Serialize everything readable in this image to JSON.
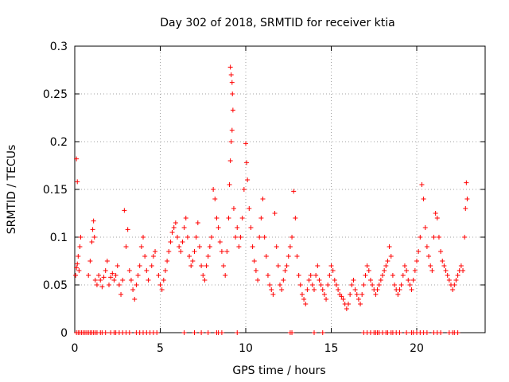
{
  "chart_data": {
    "type": "scatter",
    "title": "Day 302 of 2018, SRMTID for receiver ktia",
    "xlabel": "GPS time / hours",
    "ylabel": "SRMTID / TECUs",
    "xlim": [
      0,
      24
    ],
    "ylim": [
      0,
      0.3
    ],
    "xticks": [
      0,
      5,
      10,
      15,
      20
    ],
    "xtick_labels": [
      "0",
      "5",
      "10",
      "15",
      "20"
    ],
    "yticks": [
      0,
      0.05,
      0.1,
      0.15,
      0.2,
      0.25,
      0.3
    ],
    "ytick_labels": [
      "0",
      "0.05",
      "0.1",
      "0.15",
      "0.2",
      "0.25",
      "0.3"
    ],
    "grid": true,
    "marker": "+",
    "color": "#ff0000",
    "series": [
      {
        "name": "SRMTID",
        "points": [
          [
            0.05,
            0.06
          ],
          [
            0.1,
            0.068
          ],
          [
            0.15,
            0.072
          ],
          [
            0.2,
            0.08
          ],
          [
            0.25,
            0.065
          ],
          [
            0.1,
            0.182
          ],
          [
            0.15,
            0.158
          ],
          [
            0.3,
            0.09
          ],
          [
            0.35,
            0.1
          ],
          [
            0.8,
            0.06
          ],
          [
            0.9,
            0.075
          ],
          [
            1.0,
            0.095
          ],
          [
            1.05,
            0.108
          ],
          [
            1.1,
            0.117
          ],
          [
            1.15,
            0.1
          ],
          [
            1.2,
            0.055
          ],
          [
            1.3,
            0.05
          ],
          [
            1.4,
            0.06
          ],
          [
            1.5,
            0.055
          ],
          [
            1.6,
            0.048
          ],
          [
            1.7,
            0.058
          ],
          [
            1.8,
            0.065
          ],
          [
            1.9,
            0.075
          ],
          [
            2.0,
            0.05
          ],
          [
            2.1,
            0.058
          ],
          [
            2.2,
            0.062
          ],
          [
            2.3,
            0.055
          ],
          [
            2.4,
            0.06
          ],
          [
            2.5,
            0.07
          ],
          [
            2.6,
            0.05
          ],
          [
            2.7,
            0.04
          ],
          [
            2.8,
            0.055
          ],
          [
            2.9,
            0.128
          ],
          [
            3.0,
            0.09
          ],
          [
            3.1,
            0.108
          ],
          [
            3.2,
            0.065
          ],
          [
            3.3,
            0.055
          ],
          [
            3.4,
            0.045
          ],
          [
            3.5,
            0.035
          ],
          [
            3.6,
            0.05
          ],
          [
            3.7,
            0.06
          ],
          [
            3.8,
            0.07
          ],
          [
            3.9,
            0.09
          ],
          [
            4.0,
            0.1
          ],
          [
            4.1,
            0.08
          ],
          [
            4.2,
            0.065
          ],
          [
            4.3,
            0.055
          ],
          [
            4.5,
            0.07
          ],
          [
            4.6,
            0.08
          ],
          [
            4.7,
            0.085
          ],
          [
            4.9,
            0.06
          ],
          [
            5.0,
            0.05
          ],
          [
            5.1,
            0.045
          ],
          [
            5.2,
            0.055
          ],
          [
            5.3,
            0.065
          ],
          [
            5.4,
            0.075
          ],
          [
            5.5,
            0.085
          ],
          [
            5.6,
            0.095
          ],
          [
            5.7,
            0.105
          ],
          [
            5.8,
            0.11
          ],
          [
            5.9,
            0.115
          ],
          [
            6.0,
            0.1
          ],
          [
            6.1,
            0.09
          ],
          [
            6.2,
            0.085
          ],
          [
            6.3,
            0.095
          ],
          [
            6.4,
            0.11
          ],
          [
            6.5,
            0.12
          ],
          [
            6.6,
            0.1
          ],
          [
            6.7,
            0.08
          ],
          [
            6.8,
            0.07
          ],
          [
            6.9,
            0.075
          ],
          [
            7.0,
            0.085
          ],
          [
            7.1,
            0.1
          ],
          [
            7.2,
            0.115
          ],
          [
            7.3,
            0.09
          ],
          [
            7.4,
            0.07
          ],
          [
            7.5,
            0.06
          ],
          [
            7.6,
            0.055
          ],
          [
            7.7,
            0.07
          ],
          [
            7.8,
            0.08
          ],
          [
            7.9,
            0.09
          ],
          [
            8.0,
            0.1
          ],
          [
            8.1,
            0.15
          ],
          [
            8.2,
            0.14
          ],
          [
            8.3,
            0.12
          ],
          [
            8.4,
            0.11
          ],
          [
            8.5,
            0.095
          ],
          [
            8.6,
            0.085
          ],
          [
            8.7,
            0.07
          ],
          [
            8.8,
            0.06
          ],
          [
            8.9,
            0.085
          ],
          [
            9.0,
            0.12
          ],
          [
            9.05,
            0.155
          ],
          [
            9.1,
            0.18
          ],
          [
            9.15,
            0.2
          ],
          [
            9.2,
            0.212
          ],
          [
            9.25,
            0.233
          ],
          [
            9.1,
            0.278
          ],
          [
            9.15,
            0.27
          ],
          [
            9.2,
            0.262
          ],
          [
            9.22,
            0.25
          ],
          [
            9.3,
            0.13
          ],
          [
            9.4,
            0.1
          ],
          [
            9.5,
            0.11
          ],
          [
            9.6,
            0.09
          ],
          [
            9.7,
            0.1
          ],
          [
            9.8,
            0.12
          ],
          [
            9.9,
            0.15
          ],
          [
            10.0,
            0.198
          ],
          [
            10.05,
            0.178
          ],
          [
            10.1,
            0.16
          ],
          [
            10.2,
            0.13
          ],
          [
            10.3,
            0.11
          ],
          [
            10.4,
            0.09
          ],
          [
            10.5,
            0.075
          ],
          [
            10.6,
            0.065
          ],
          [
            10.7,
            0.055
          ],
          [
            10.8,
            0.1
          ],
          [
            10.9,
            0.12
          ],
          [
            11.0,
            0.14
          ],
          [
            11.1,
            0.1
          ],
          [
            11.2,
            0.08
          ],
          [
            11.3,
            0.06
          ],
          [
            11.4,
            0.05
          ],
          [
            11.5,
            0.045
          ],
          [
            11.6,
            0.04
          ],
          [
            11.7,
            0.125
          ],
          [
            11.8,
            0.09
          ],
          [
            11.9,
            0.07
          ],
          [
            12.0,
            0.05
          ],
          [
            12.1,
            0.045
          ],
          [
            12.2,
            0.055
          ],
          [
            12.3,
            0.065
          ],
          [
            12.4,
            0.07
          ],
          [
            12.5,
            0.08
          ],
          [
            12.6,
            0.09
          ],
          [
            12.7,
            0.1
          ],
          [
            12.8,
            0.148
          ],
          [
            12.9,
            0.12
          ],
          [
            13.0,
            0.08
          ],
          [
            13.1,
            0.06
          ],
          [
            13.2,
            0.05
          ],
          [
            13.3,
            0.04
          ],
          [
            13.4,
            0.035
          ],
          [
            13.5,
            0.03
          ],
          [
            13.6,
            0.045
          ],
          [
            13.7,
            0.055
          ],
          [
            13.8,
            0.06
          ],
          [
            13.9,
            0.05
          ],
          [
            14.0,
            0.045
          ],
          [
            14.1,
            0.06
          ],
          [
            14.2,
            0.07
          ],
          [
            14.3,
            0.055
          ],
          [
            14.4,
            0.05
          ],
          [
            14.5,
            0.045
          ],
          [
            14.6,
            0.04
          ],
          [
            14.7,
            0.035
          ],
          [
            14.8,
            0.05
          ],
          [
            14.9,
            0.06
          ],
          [
            15.0,
            0.07
          ],
          [
            15.1,
            0.065
          ],
          [
            15.2,
            0.055
          ],
          [
            15.3,
            0.05
          ],
          [
            15.4,
            0.045
          ],
          [
            15.5,
            0.04
          ],
          [
            15.6,
            0.038
          ],
          [
            15.7,
            0.035
          ],
          [
            15.8,
            0.03
          ],
          [
            15.9,
            0.025
          ],
          [
            16.0,
            0.03
          ],
          [
            16.1,
            0.04
          ],
          [
            16.2,
            0.05
          ],
          [
            16.3,
            0.055
          ],
          [
            16.4,
            0.045
          ],
          [
            16.5,
            0.04
          ],
          [
            16.6,
            0.035
          ],
          [
            16.7,
            0.03
          ],
          [
            16.8,
            0.04
          ],
          [
            16.9,
            0.05
          ],
          [
            17.0,
            0.06
          ],
          [
            17.1,
            0.07
          ],
          [
            17.2,
            0.065
          ],
          [
            17.3,
            0.055
          ],
          [
            17.4,
            0.05
          ],
          [
            17.5,
            0.045
          ],
          [
            17.6,
            0.04
          ],
          [
            17.7,
            0.045
          ],
          [
            17.8,
            0.05
          ],
          [
            17.9,
            0.055
          ],
          [
            18.0,
            0.06
          ],
          [
            18.1,
            0.065
          ],
          [
            18.2,
            0.07
          ],
          [
            18.3,
            0.075
          ],
          [
            18.4,
            0.09
          ],
          [
            18.5,
            0.08
          ],
          [
            18.6,
            0.06
          ],
          [
            18.7,
            0.05
          ],
          [
            18.8,
            0.045
          ],
          [
            18.9,
            0.04
          ],
          [
            19.0,
            0.045
          ],
          [
            19.1,
            0.05
          ],
          [
            19.2,
            0.06
          ],
          [
            19.3,
            0.07
          ],
          [
            19.4,
            0.065
          ],
          [
            19.5,
            0.055
          ],
          [
            19.6,
            0.05
          ],
          [
            19.7,
            0.045
          ],
          [
            19.8,
            0.055
          ],
          [
            19.9,
            0.065
          ],
          [
            20.0,
            0.075
          ],
          [
            20.1,
            0.085
          ],
          [
            20.2,
            0.1
          ],
          [
            20.3,
            0.155
          ],
          [
            20.4,
            0.14
          ],
          [
            20.5,
            0.11
          ],
          [
            20.6,
            0.09
          ],
          [
            20.7,
            0.08
          ],
          [
            20.8,
            0.07
          ],
          [
            20.9,
            0.065
          ],
          [
            21.0,
            0.1
          ],
          [
            21.1,
            0.125
          ],
          [
            21.2,
            0.12
          ],
          [
            21.3,
            0.1
          ],
          [
            21.4,
            0.085
          ],
          [
            21.5,
            0.075
          ],
          [
            21.6,
            0.07
          ],
          [
            21.7,
            0.065
          ],
          [
            21.8,
            0.06
          ],
          [
            21.9,
            0.055
          ],
          [
            22.0,
            0.05
          ],
          [
            22.1,
            0.045
          ],
          [
            22.2,
            0.05
          ],
          [
            22.3,
            0.055
          ],
          [
            22.4,
            0.06
          ],
          [
            22.5,
            0.065
          ],
          [
            22.6,
            0.07
          ],
          [
            22.7,
            0.065
          ],
          [
            22.8,
            0.1
          ],
          [
            22.85,
            0.13
          ],
          [
            22.9,
            0.157
          ],
          [
            22.95,
            0.14
          ]
        ],
        "zero_points": [
          0.1,
          0.2,
          0.3,
          0.4,
          0.5,
          0.6,
          0.7,
          0.8,
          0.9,
          1.0,
          1.1,
          1.2,
          1.3,
          1.5,
          1.6,
          1.8,
          2.1,
          2.3,
          2.4,
          2.6,
          2.8,
          3.0,
          3.2,
          3.6,
          3.8,
          4.0,
          4.2,
          4.4,
          4.6,
          4.8,
          6.4,
          7.0,
          7.4,
          7.8,
          8.3,
          8.4,
          8.6,
          9.5,
          12.6,
          12.7,
          14.0,
          14.5,
          16.9,
          17.1,
          17.3,
          17.5,
          17.6,
          17.7,
          17.8,
          18.0,
          18.2,
          18.3,
          18.5,
          18.6,
          18.8,
          19.0,
          19.4,
          19.7,
          19.8,
          20.0,
          20.2,
          20.4,
          20.6,
          21.0,
          21.2,
          21.4,
          21.9,
          22.1,
          22.2,
          22.4
        ]
      }
    ]
  }
}
